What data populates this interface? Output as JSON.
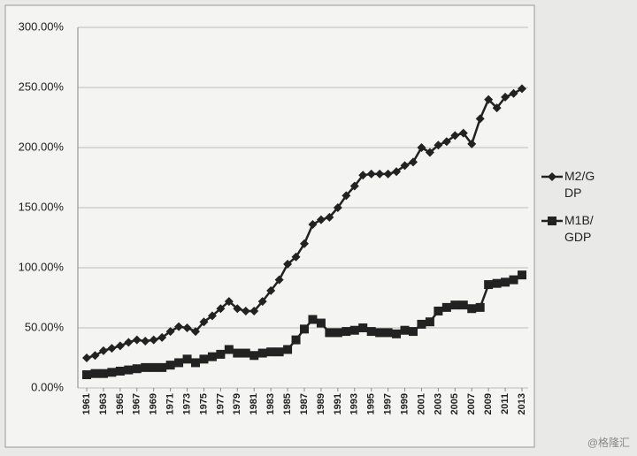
{
  "chart_data": {
    "type": "line",
    "x": [
      1961,
      1962,
      1963,
      1964,
      1965,
      1966,
      1967,
      1968,
      1969,
      1970,
      1971,
      1972,
      1973,
      1974,
      1975,
      1976,
      1977,
      1978,
      1979,
      1980,
      1981,
      1982,
      1983,
      1984,
      1985,
      1986,
      1987,
      1988,
      1989,
      1990,
      1991,
      1992,
      1993,
      1994,
      1995,
      1996,
      1997,
      1998,
      1999,
      2000,
      2001,
      2002,
      2003,
      2004,
      2005,
      2006,
      2007,
      2008,
      2009,
      2010,
      2011,
      2012,
      2013
    ],
    "xlim": [
      1961,
      2013
    ],
    "xticks": [
      1961,
      1963,
      1965,
      1967,
      1969,
      1971,
      1973,
      1975,
      1977,
      1979,
      1981,
      1983,
      1985,
      1987,
      1989,
      1991,
      1993,
      1995,
      1997,
      1999,
      2001,
      2003,
      2005,
      2007,
      2009,
      2011,
      2013
    ],
    "ylim": [
      0,
      300
    ],
    "yticks": [
      {
        "value": 0,
        "label": "0.00%"
      },
      {
        "value": 50,
        "label": "50.00%"
      },
      {
        "value": 100,
        "label": "100.00%"
      },
      {
        "value": 150,
        "label": "150.00%"
      },
      {
        "value": 200,
        "label": "200.00%"
      },
      {
        "value": 250,
        "label": "250.00%"
      },
      {
        "value": 300,
        "label": "300.00%"
      }
    ],
    "grid": true,
    "series": [
      {
        "name": "M2/GDP",
        "color": "#222222",
        "marker": "diamond",
        "values": [
          25,
          27,
          31,
          33,
          35,
          38,
          40,
          39,
          40,
          42,
          47,
          51,
          50,
          47,
          55,
          60,
          66,
          72,
          66,
          64,
          64,
          72,
          81,
          90,
          103,
          109,
          120,
          136,
          140,
          142,
          150,
          160,
          168,
          177,
          178,
          178,
          178,
          180,
          185,
          188,
          200,
          196,
          202,
          205,
          210,
          212,
          203,
          224,
          240,
          233,
          242,
          245,
          249
        ]
      },
      {
        "name": "M1B/GDP",
        "color": "#222222",
        "marker": "square",
        "values": [
          11,
          12,
          12,
          13,
          14,
          15,
          16,
          17,
          17,
          17,
          19,
          21,
          24,
          21,
          24,
          26,
          28,
          32,
          29,
          29,
          27,
          29,
          30,
          30,
          32,
          40,
          49,
          57,
          54,
          46,
          46,
          47,
          48,
          50,
          47,
          46,
          46,
          45,
          48,
          47,
          53,
          55,
          64,
          67,
          69,
          69,
          66,
          67,
          86,
          87,
          88,
          90,
          94
        ]
      }
    ],
    "watermark": "@格隆汇"
  }
}
